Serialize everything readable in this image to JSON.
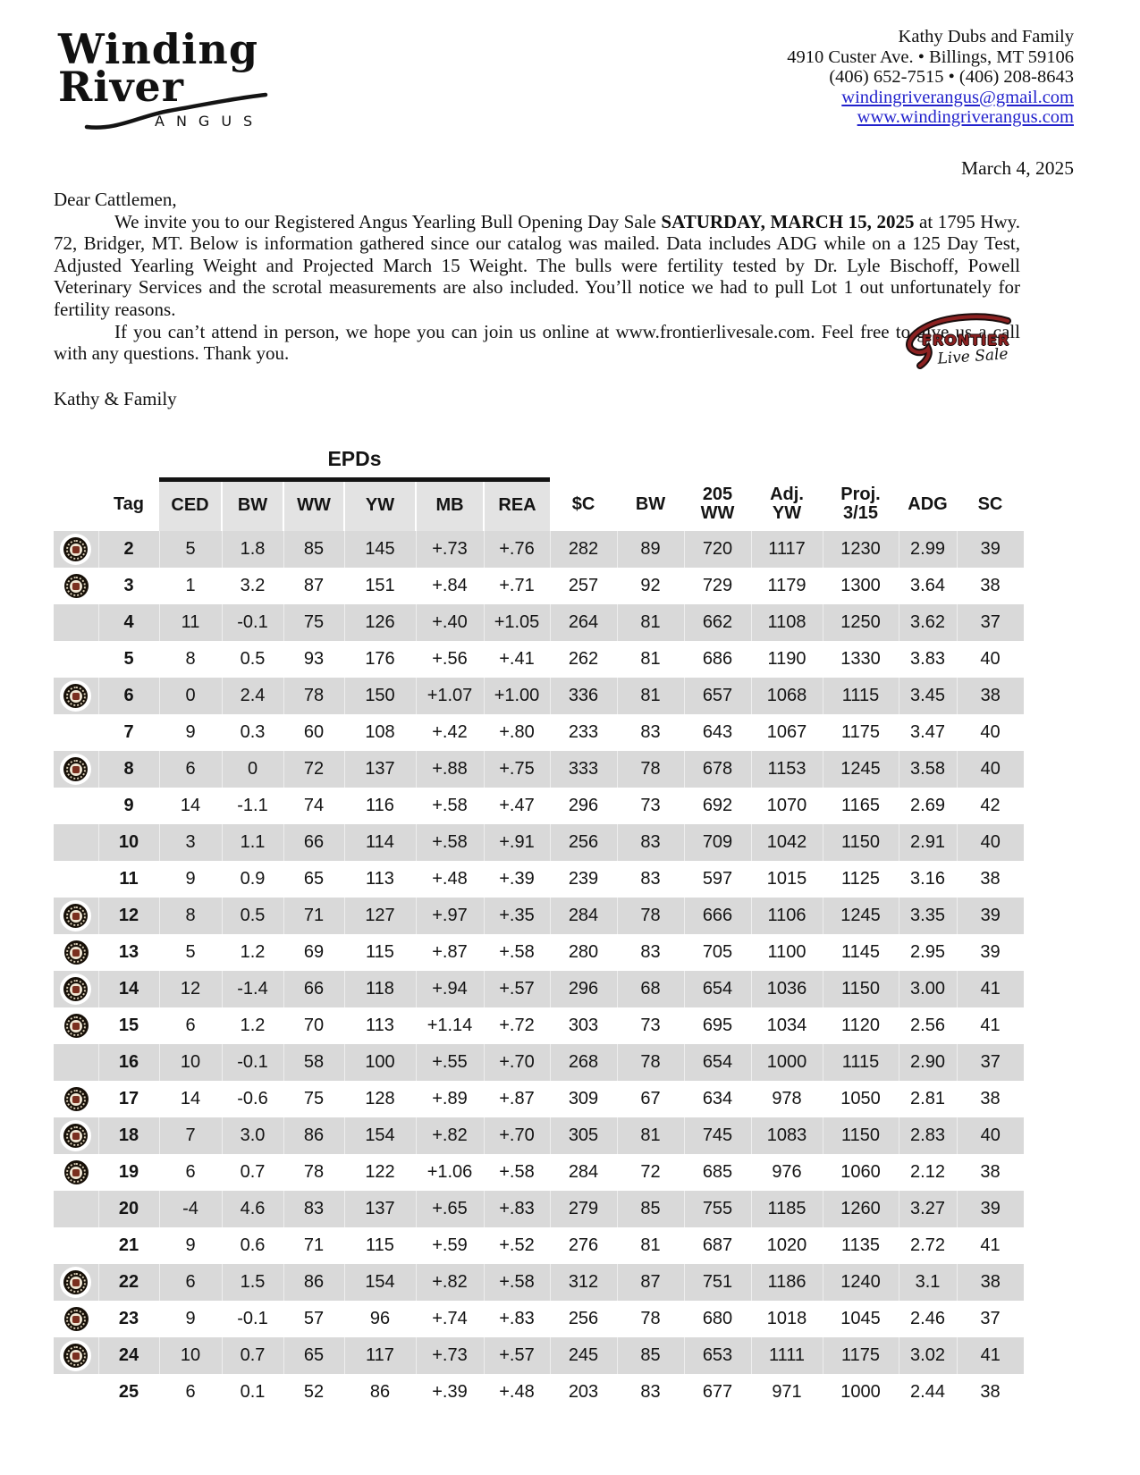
{
  "letterhead": {
    "logo": {
      "word1": "Winding",
      "word2": "River",
      "subtext": "ANGUS"
    },
    "contact": {
      "name": "Kathy Dubs and Family",
      "address": "4910 Custer Ave.  •  Billings, MT  59106",
      "phones": "(406) 652-7515  •  (406) 208-8643",
      "email": "windingriverangus@gmail.com",
      "website": "www.windingriverangus.com"
    },
    "date": "March 4, 2025"
  },
  "letter": {
    "salutation": "Dear Cattlemen,",
    "para1_lead": "We invite you to our Registered Angus Yearling Bull Opening Day Sale ",
    "para1_bold": "SATURDAY, MARCH 15, 2025",
    "para1_rest": " at 1795 Hwy. 72, Bridger, MT.  Below is information gathered since our catalog was mailed. Data includes ADG while on a 125 Day Test, Adjusted Yearling Weight and Projected March 15 Weight.  The bulls were fertility tested by Dr. Lyle Bischoff, Powell Veterinary Services and the scrotal measurements are also included.  You’ll notice we had to pull Lot 1 out unfortunately for fertility reasons.",
    "para2": "If you can’t attend in person, we hope you can join us online at www.frontierlivesale.com. Feel free to give us a call with any questions.  Thank you.",
    "signature": "Kathy & Family"
  },
  "frontier_logo": {
    "title": "FRONTIER",
    "subtitle": "Live Sale"
  },
  "table": {
    "group_header": "EPDs",
    "columns": [
      "Tag",
      "CED",
      "BW",
      "WW",
      "YW",
      "MB",
      "REA",
      "$C",
      "BW",
      "205\nWW",
      "Adj.\nYW",
      "Proj.\n3/15",
      "ADG",
      "SC"
    ],
    "icon_name": "bull-seal-icon",
    "rows": [
      {
        "icon": true,
        "tag": "2",
        "values": [
          "5",
          "1.8",
          "85",
          "145",
          "+.73",
          "+.76",
          "282",
          "89",
          "720",
          "1117",
          "1230",
          "2.99",
          "39"
        ]
      },
      {
        "icon": true,
        "tag": "3",
        "values": [
          "1",
          "3.2",
          "87",
          "151",
          "+.84",
          "+.71",
          "257",
          "92",
          "729",
          "1179",
          "1300",
          "3.64",
          "38"
        ]
      },
      {
        "icon": false,
        "tag": "4",
        "values": [
          "11",
          "-0.1",
          "75",
          "126",
          "+.40",
          "+1.05",
          "264",
          "81",
          "662",
          "1108",
          "1250",
          "3.62",
          "37"
        ]
      },
      {
        "icon": false,
        "tag": "5",
        "values": [
          "8",
          "0.5",
          "93",
          "176",
          "+.56",
          "+.41",
          "262",
          "81",
          "686",
          "1190",
          "1330",
          "3.83",
          "40"
        ]
      },
      {
        "icon": true,
        "tag": "6",
        "values": [
          "0",
          "2.4",
          "78",
          "150",
          "+1.07",
          "+1.00",
          "336",
          "81",
          "657",
          "1068",
          "1115",
          "3.45",
          "38"
        ]
      },
      {
        "icon": false,
        "tag": "7",
        "values": [
          "9",
          "0.3",
          "60",
          "108",
          "+.42",
          "+.80",
          "233",
          "83",
          "643",
          "1067",
          "1175",
          "3.47",
          "40"
        ]
      },
      {
        "icon": true,
        "tag": "8",
        "values": [
          "6",
          "0",
          "72",
          "137",
          "+.88",
          "+.75",
          "333",
          "78",
          "678",
          "1153",
          "1245",
          "3.58",
          "40"
        ]
      },
      {
        "icon": false,
        "tag": "9",
        "values": [
          "14",
          "-1.1",
          "74",
          "116",
          "+.58",
          "+.47",
          "296",
          "73",
          "692",
          "1070",
          "1165",
          "2.69",
          "42"
        ]
      },
      {
        "icon": false,
        "tag": "10",
        "values": [
          "3",
          "1.1",
          "66",
          "114",
          "+.58",
          "+.91",
          "256",
          "83",
          "709",
          "1042",
          "1150",
          "2.91",
          "40"
        ]
      },
      {
        "icon": false,
        "tag": "11",
        "values": [
          "9",
          "0.9",
          "65",
          "113",
          "+.48",
          "+.39",
          "239",
          "83",
          "597",
          "1015",
          "1125",
          "3.16",
          "38"
        ]
      },
      {
        "icon": true,
        "tag": "12",
        "values": [
          "8",
          "0.5",
          "71",
          "127",
          "+.97",
          "+.35",
          "284",
          "78",
          "666",
          "1106",
          "1245",
          "3.35",
          "39"
        ]
      },
      {
        "icon": true,
        "tag": "13",
        "values": [
          "5",
          "1.2",
          "69",
          "115",
          "+.87",
          "+.58",
          "280",
          "83",
          "705",
          "1100",
          "1145",
          "2.95",
          "39"
        ]
      },
      {
        "icon": true,
        "tag": "14",
        "values": [
          "12",
          "-1.4",
          "66",
          "118",
          "+.94",
          "+.57",
          "296",
          "68",
          "654",
          "1036",
          "1150",
          "3.00",
          "41"
        ]
      },
      {
        "icon": true,
        "tag": "15",
        "values": [
          "6",
          "1.2",
          "70",
          "113",
          "+1.14",
          "+.72",
          "303",
          "73",
          "695",
          "1034",
          "1120",
          "2.56",
          "41"
        ]
      },
      {
        "icon": false,
        "tag": "16",
        "values": [
          "10",
          "-0.1",
          "58",
          "100",
          "+.55",
          "+.70",
          "268",
          "78",
          "654",
          "1000",
          "1115",
          "2.90",
          "37"
        ]
      },
      {
        "icon": true,
        "tag": "17",
        "values": [
          "14",
          "-0.6",
          "75",
          "128",
          "+.89",
          "+.87",
          "309",
          "67",
          "634",
          "978",
          "1050",
          "2.81",
          "38"
        ]
      },
      {
        "icon": true,
        "tag": "18",
        "values": [
          "7",
          "3.0",
          "86",
          "154",
          "+.82",
          "+.70",
          "305",
          "81",
          "745",
          "1083",
          "1150",
          "2.83",
          "40"
        ]
      },
      {
        "icon": true,
        "tag": "19",
        "values": [
          "6",
          "0.7",
          "78",
          "122",
          "+1.06",
          "+.58",
          "284",
          "72",
          "685",
          "976",
          "1060",
          "2.12",
          "38"
        ]
      },
      {
        "icon": false,
        "tag": "20",
        "values": [
          "-4",
          "4.6",
          "83",
          "137",
          "+.65",
          "+.83",
          "279",
          "85",
          "755",
          "1185",
          "1260",
          "3.27",
          "39"
        ]
      },
      {
        "icon": false,
        "tag": "21",
        "values": [
          "9",
          "0.6",
          "71",
          "115",
          "+.59",
          "+.52",
          "276",
          "81",
          "687",
          "1020",
          "1135",
          "2.72",
          "41"
        ]
      },
      {
        "icon": true,
        "tag": "22",
        "values": [
          "6",
          "1.5",
          "86",
          "154",
          "+.82",
          "+.58",
          "312",
          "87",
          "751",
          "1186",
          "1240",
          "3.1",
          "38"
        ]
      },
      {
        "icon": true,
        "tag": "23",
        "values": [
          "9",
          "-0.1",
          "57",
          "96",
          "+.74",
          "+.83",
          "256",
          "78",
          "680",
          "1018",
          "1045",
          "2.46",
          "37"
        ]
      },
      {
        "icon": true,
        "tag": "24",
        "values": [
          "10",
          "0.7",
          "65",
          "117",
          "+.73",
          "+.57",
          "245",
          "85",
          "653",
          "1111",
          "1175",
          "3.02",
          "41"
        ]
      },
      {
        "icon": false,
        "tag": "25",
        "values": [
          "6",
          "0.1",
          "52",
          "86",
          "+.39",
          "+.48",
          "203",
          "83",
          "677",
          "971",
          "1000",
          "2.44",
          "38"
        ]
      }
    ]
  },
  "colors": {
    "link_blue": "#2121cc",
    "row_gray": "#d9d9d9",
    "header_gray": "#e3e3e3",
    "frontier_red": "#8c2121",
    "badge_maroon": "#7a2f1f"
  }
}
